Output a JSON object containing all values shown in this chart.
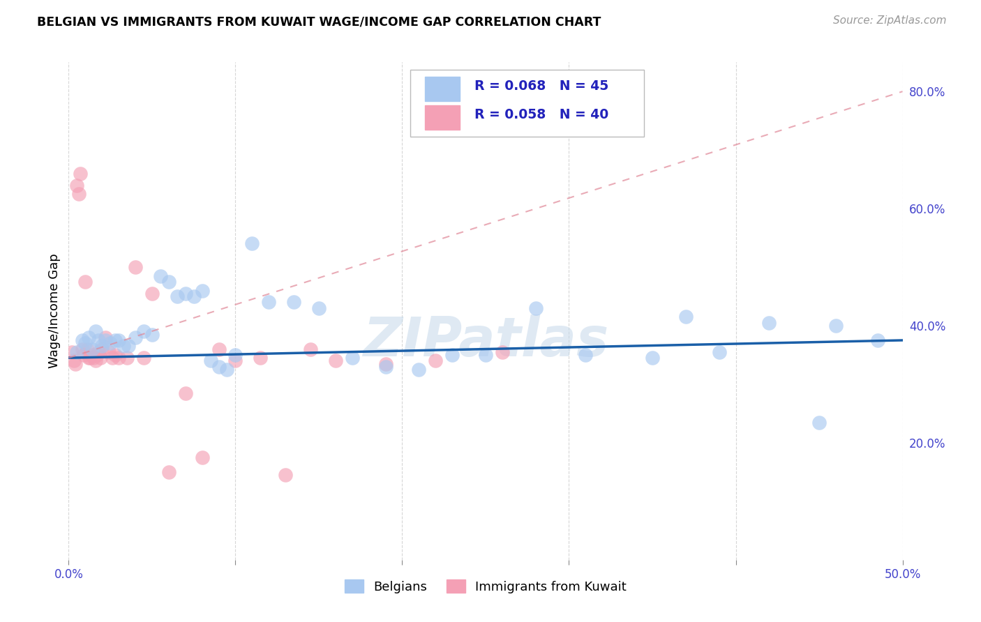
{
  "title": "BELGIAN VS IMMIGRANTS FROM KUWAIT WAGE/INCOME GAP CORRELATION CHART",
  "source": "Source: ZipAtlas.com",
  "ylabel": "Wage/Income Gap",
  "watermark": "ZIPatlas",
  "xlim": [
    0.0,
    0.5
  ],
  "ylim": [
    0.0,
    0.85
  ],
  "xtick_positions": [
    0.0,
    0.1,
    0.2,
    0.3,
    0.4,
    0.5
  ],
  "xtick_labels": [
    "0.0%",
    "",
    "",
    "",
    "",
    "50.0%"
  ],
  "ytick_positions_right": [
    0.2,
    0.4,
    0.6,
    0.8
  ],
  "ytick_labels_right": [
    "20.0%",
    "40.0%",
    "60.0%",
    "80.0%"
  ],
  "legend_r1": "R = 0.068",
  "legend_n1": "N = 45",
  "legend_r2": "R = 0.058",
  "legend_n2": "N = 40",
  "belgian_color": "#a8c8f0",
  "kuwait_color": "#f4a0b5",
  "trend_blue_color": "#1a5fa8",
  "trend_pink_color": "#e08898",
  "legend_labels": [
    "Belgians",
    "Immigrants from Kuwait"
  ],
  "blue_trend_x": [
    0.0,
    0.5
  ],
  "blue_trend_y": [
    0.345,
    0.375
  ],
  "pink_trend_x": [
    0.0,
    0.5
  ],
  "pink_trend_y": [
    0.345,
    0.8
  ],
  "belgians_x": [
    0.005,
    0.008,
    0.01,
    0.012,
    0.014,
    0.016,
    0.018,
    0.02,
    0.022,
    0.025,
    0.028,
    0.03,
    0.033,
    0.036,
    0.04,
    0.045,
    0.05,
    0.055,
    0.06,
    0.065,
    0.07,
    0.075,
    0.08,
    0.085,
    0.09,
    0.095,
    0.1,
    0.11,
    0.12,
    0.135,
    0.15,
    0.17,
    0.19,
    0.21,
    0.23,
    0.25,
    0.28,
    0.31,
    0.35,
    0.37,
    0.39,
    0.42,
    0.45,
    0.46,
    0.485
  ],
  "belgians_y": [
    0.355,
    0.375,
    0.37,
    0.38,
    0.36,
    0.39,
    0.375,
    0.365,
    0.375,
    0.37,
    0.375,
    0.375,
    0.365,
    0.365,
    0.38,
    0.39,
    0.385,
    0.485,
    0.475,
    0.45,
    0.455,
    0.45,
    0.46,
    0.34,
    0.33,
    0.325,
    0.35,
    0.54,
    0.44,
    0.44,
    0.43,
    0.345,
    0.33,
    0.325,
    0.35,
    0.35,
    0.43,
    0.35,
    0.345,
    0.415,
    0.355,
    0.405,
    0.235,
    0.4,
    0.375
  ],
  "kuwait_x": [
    0.002,
    0.003,
    0.004,
    0.005,
    0.006,
    0.007,
    0.008,
    0.009,
    0.01,
    0.011,
    0.012,
    0.013,
    0.014,
    0.015,
    0.016,
    0.017,
    0.018,
    0.019,
    0.02,
    0.022,
    0.024,
    0.026,
    0.028,
    0.03,
    0.035,
    0.04,
    0.045,
    0.05,
    0.06,
    0.07,
    0.08,
    0.09,
    0.1,
    0.115,
    0.13,
    0.145,
    0.16,
    0.19,
    0.22,
    0.26
  ],
  "kuwait_y": [
    0.355,
    0.34,
    0.335,
    0.64,
    0.625,
    0.66,
    0.36,
    0.35,
    0.475,
    0.36,
    0.345,
    0.345,
    0.35,
    0.345,
    0.34,
    0.35,
    0.355,
    0.345,
    0.36,
    0.38,
    0.355,
    0.345,
    0.35,
    0.345,
    0.345,
    0.5,
    0.345,
    0.455,
    0.15,
    0.285,
    0.175,
    0.36,
    0.34,
    0.345,
    0.145,
    0.36,
    0.34,
    0.335,
    0.34,
    0.355
  ]
}
